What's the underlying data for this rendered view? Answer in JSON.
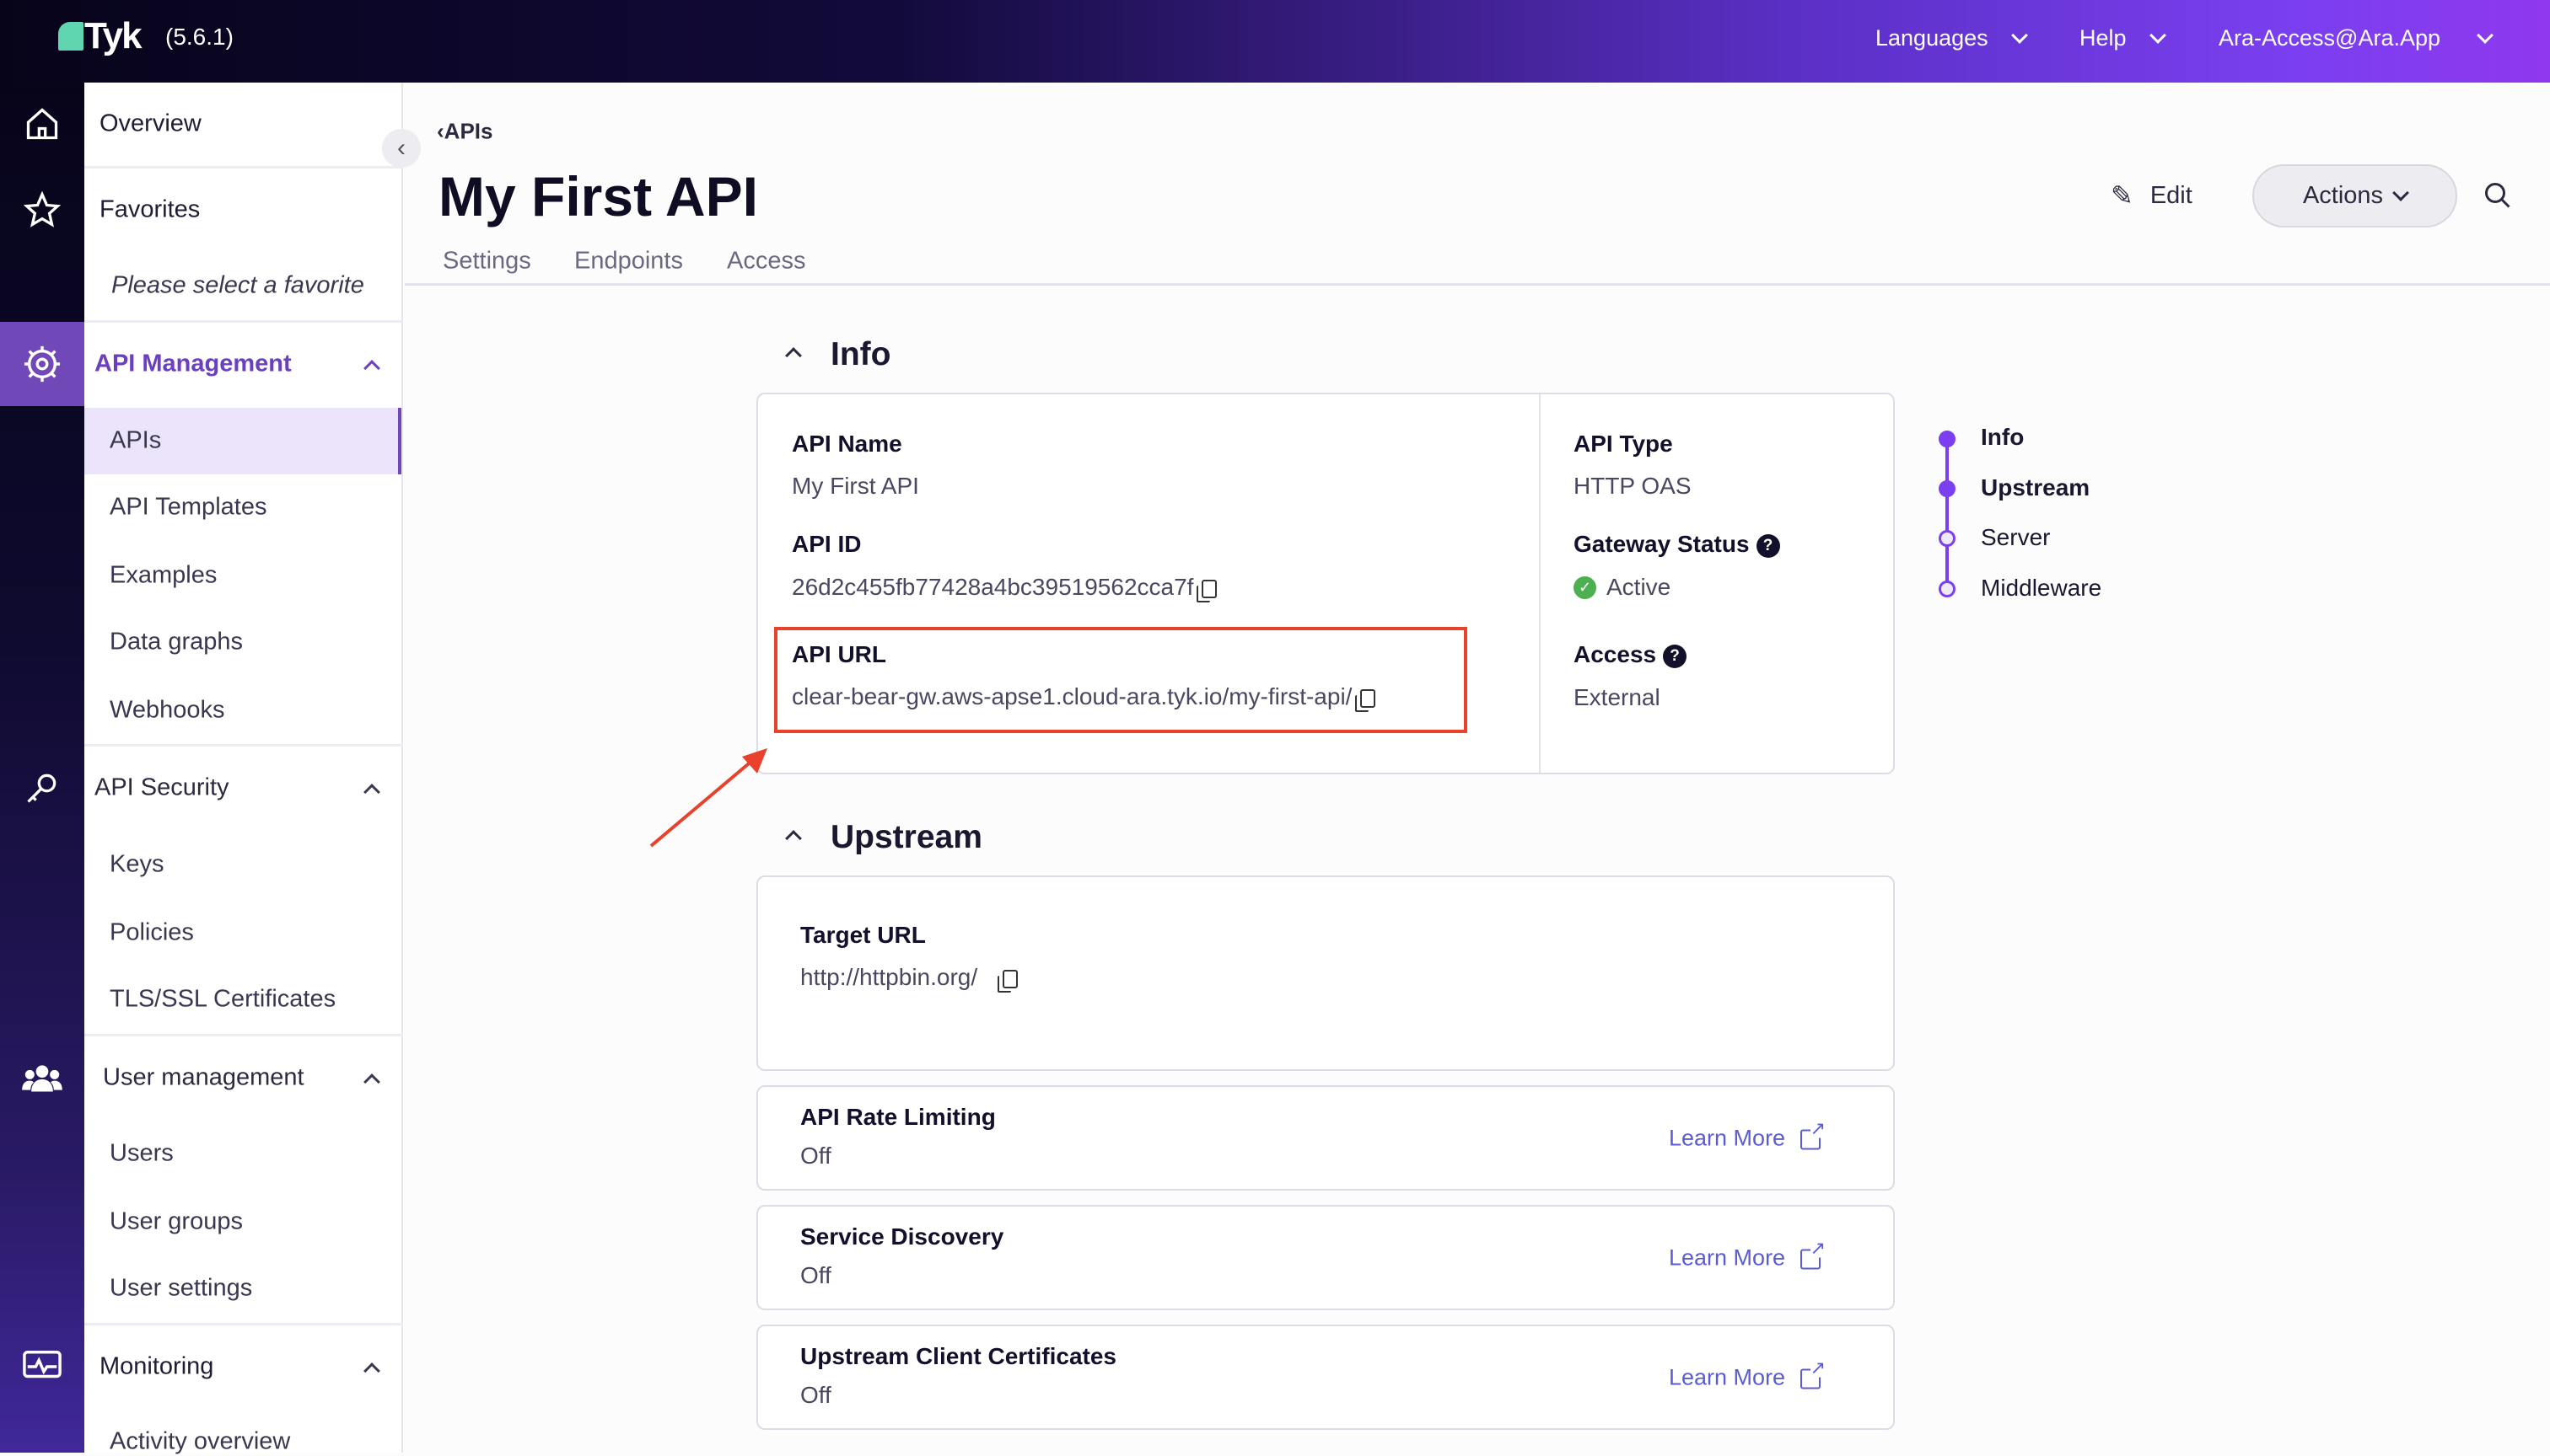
{
  "topbar": {
    "logo": "Tyk",
    "version": "(5.6.1)",
    "languages": "Languages",
    "help": "Help",
    "account": "Ara-Access@Ara.App"
  },
  "rail": {
    "icons": [
      "home-icon",
      "star-icon",
      "api-gear-icon",
      "key-icon",
      "users-icon",
      "monitor-icon"
    ],
    "active_color": "#7048b8"
  },
  "sidebar": {
    "overview": "Overview",
    "favorites": "Favorites",
    "favorites_empty": "Please select a favorite",
    "api_management": {
      "label": "API Management",
      "items": [
        "APIs",
        "API Templates",
        "Examples",
        "Data graphs",
        "Webhooks"
      ],
      "selected": "APIs"
    },
    "api_security": {
      "label": "API Security",
      "items": [
        "Keys",
        "Policies",
        "TLS/SSL Certificates"
      ]
    },
    "user_management": {
      "label": "User management",
      "items": [
        "Users",
        "User groups",
        "User settings"
      ]
    },
    "monitoring": {
      "label": "Monitoring",
      "items": [
        "Activity overview"
      ]
    }
  },
  "header": {
    "breadcrumb": "APIs",
    "title": "My First API",
    "edit": "Edit",
    "actions": "Actions",
    "tabs": [
      "Settings",
      "Endpoints",
      "Access"
    ]
  },
  "info": {
    "heading": "Info",
    "api_name_label": "API Name",
    "api_name": "My First API",
    "api_id_label": "API ID",
    "api_id": "26d2c455fb77428a4bc39519562cca7f",
    "api_url_label": "API URL",
    "api_url": "clear-bear-gw.aws-apse1.cloud-ara.tyk.io/my-first-api/",
    "api_type_label": "API Type",
    "api_type": "HTTP OAS",
    "gateway_status_label": "Gateway Status",
    "gateway_status": "Active",
    "access_label": "Access",
    "access": "External"
  },
  "upstream": {
    "heading": "Upstream",
    "target_url_label": "Target URL",
    "target_url": "http://httpbin.org/",
    "features": [
      {
        "title": "API Rate Limiting",
        "value": "Off",
        "link": "Learn More"
      },
      {
        "title": "Service Discovery",
        "value": "Off",
        "link": "Learn More"
      },
      {
        "title": "Upstream Client Certificates",
        "value": "Off",
        "link": "Learn More"
      }
    ]
  },
  "section_nav": [
    {
      "label": "Info",
      "done": true
    },
    {
      "label": "Upstream",
      "done": true
    },
    {
      "label": "Server",
      "done": false
    },
    {
      "label": "Middleware",
      "done": false
    }
  ],
  "colors": {
    "accent": "#7b3ff0",
    "highlight": "#e8412c",
    "active_status": "#4caf50",
    "link": "#5b5bd6"
  }
}
